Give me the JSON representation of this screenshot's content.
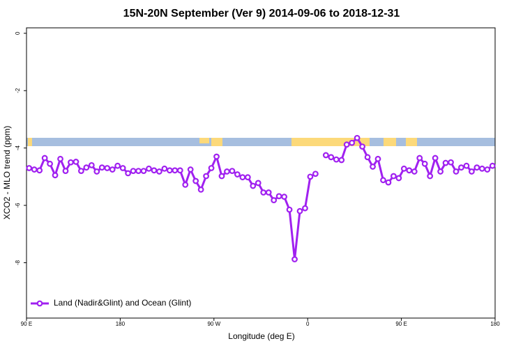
{
  "chart_data": {
    "type": "line",
    "title": "15N-20N September (Ver 9)   2014-09-06 to 2018-12-31",
    "x_label": "Longitude (deg E)",
    "y_label": "XCO2 - MLO trend (ppm)",
    "xlim": [
      90,
      540
    ],
    "ylim": [
      -9.93,
      0.19
    ],
    "xticks": [
      {
        "value": 90,
        "label": "90 E"
      },
      {
        "value": 180,
        "label": "180"
      },
      {
        "value": 270,
        "label": "90 W"
      },
      {
        "value": 360,
        "label": "0"
      },
      {
        "value": 450,
        "label": "90 E"
      },
      {
        "value": 540,
        "label": "180"
      }
    ],
    "yticks": [
      0,
      -2,
      -4,
      -6,
      -8
    ],
    "legend": "bottom-left",
    "x": [
      92.5,
      97.5,
      102.5,
      107.5,
      112.5,
      117.5,
      122.5,
      127.5,
      132.5,
      137.5,
      142.5,
      147.5,
      152.5,
      157.5,
      162.5,
      167.5,
      172.5,
      177.5,
      182.5,
      187.5,
      192.5,
      197.5,
      202.5,
      207.5,
      212.5,
      217.5,
      222.5,
      227.5,
      232.5,
      237.5,
      242.5,
      247.5,
      252.5,
      257.5,
      262.5,
      267.5,
      272.5,
      277.5,
      282.5,
      287.5,
      292.5,
      297.5,
      302.5,
      307.5,
      312.5,
      317.5,
      322.5,
      327.5,
      332.5,
      337.5,
      342.5,
      347.5,
      352.5,
      357.5,
      362.5,
      367.5,
      372.5,
      377.5,
      382.5,
      387.5,
      392.5,
      397.5,
      402.5,
      407.5,
      412.5,
      417.5,
      422.5,
      427.5,
      432.5,
      437.5,
      442.5,
      447.5,
      452.5,
      457.5,
      462.5,
      467.5,
      472.5,
      477.5,
      482.5,
      487.5,
      492.5,
      497.5,
      502.5,
      507.5,
      512.5,
      517.5,
      522.5,
      527.5,
      532.5,
      537.5
    ],
    "series": [
      {
        "name": "Land (Nadir&Glint) and Ocean (Glint)",
        "color": "#a020f0",
        "values": [
          -4.7,
          -4.75,
          -4.78,
          -4.35,
          -4.55,
          -4.95,
          -4.38,
          -4.8,
          -4.5,
          -4.48,
          -4.8,
          -4.68,
          -4.6,
          -4.82,
          -4.68,
          -4.7,
          -4.75,
          -4.62,
          -4.7,
          -4.88,
          -4.8,
          -4.8,
          -4.8,
          -4.72,
          -4.78,
          -4.82,
          -4.72,
          -4.78,
          -4.78,
          -4.78,
          -5.28,
          -4.75,
          -5.15,
          -5.45,
          -4.98,
          -4.7,
          -4.3,
          -4.98,
          -4.82,
          -4.8,
          -4.92,
          -5.02,
          -5.02,
          -5.32,
          -5.22,
          -5.55,
          -5.55,
          -5.82,
          -5.68,
          -5.7,
          -6.15,
          -7.88,
          -6.2,
          -6.1,
          -5.0,
          -4.9,
          null,
          -4.25,
          -4.32,
          -4.4,
          -4.42,
          -3.88,
          -3.82,
          -3.65,
          -3.95,
          -4.32,
          -4.65,
          -4.38,
          -5.12,
          -5.2,
          -4.98,
          -5.05,
          -4.72,
          -4.78,
          -4.82,
          -4.35,
          -4.55,
          -4.98,
          -4.35,
          -4.82,
          -4.52,
          -4.5,
          -4.82,
          -4.68,
          -4.62,
          -4.82,
          -4.68,
          -4.72,
          -4.75,
          -4.62
        ]
      }
    ]
  }
}
